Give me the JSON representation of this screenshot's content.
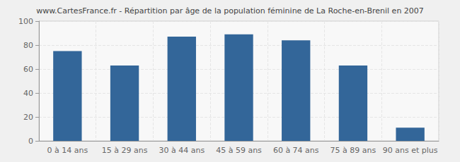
{
  "chart_data": {
    "type": "bar",
    "title": "www.CartesFrance.fr - Répartition par âge de la population féminine de La Roche-en-Brenil en 2007",
    "categories": [
      "0 à 14 ans",
      "15 à 29 ans",
      "30 à 44 ans",
      "45 à 59 ans",
      "60 à 74 ans",
      "75 à 89 ans",
      "90 ans et plus"
    ],
    "values": [
      75,
      63,
      87,
      89,
      84,
      63,
      11
    ],
    "color": "#336699",
    "ylim": [
      0,
      100
    ],
    "yticks": [
      0,
      20,
      40,
      60,
      80,
      100
    ],
    "grid": true
  }
}
